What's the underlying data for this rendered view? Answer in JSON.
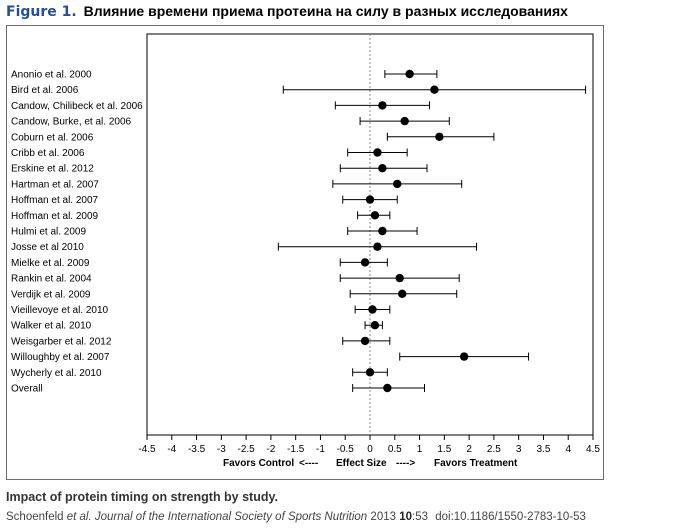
{
  "figure": {
    "label": "Figure 1.",
    "title": "Влияние времени приема протеина на силу в разных исследованиях"
  },
  "caption": {
    "title": "Impact of protein timing on strength by study.",
    "authors": "Schoenfeld",
    "etal": "et al.",
    "journal": "Journal of the International Society of Sports Nutrition",
    "year": "2013",
    "volume": "10",
    "article": ":53",
    "doi": "doi:10.1186/1550-2783-10-53"
  },
  "chart_data": {
    "type": "scatter",
    "subtype": "forest-plot",
    "title": "",
    "xlabel_left": "Favors Control",
    "xlabel_left_arrow": "<----",
    "xlabel_center": "Effect Size",
    "xlabel_right_arrow": "---->",
    "xlabel_right": "Favors Treatment",
    "xlim": [
      -4.5,
      4.5
    ],
    "xticks": [
      -4.5,
      -4,
      -3.5,
      -3,
      -2.5,
      -2,
      -1.5,
      -1,
      -0.5,
      0,
      0.5,
      1,
      1.5,
      2,
      2.5,
      3,
      3.5,
      4,
      4.5
    ],
    "xtick_labels": [
      "-4.5",
      "-4",
      "-3.5",
      "-3",
      "-2.5",
      "-2",
      "-1.5",
      "-1",
      "-0.5",
      "0",
      "0.5",
      "1",
      "1.5",
      "2",
      "2.5",
      "3",
      "3.5",
      "4",
      "4.5"
    ],
    "reference_line": 0,
    "grid": false,
    "studies": [
      {
        "name": "Anonio et al. 2000",
        "estimate": 0.8,
        "lower": 0.3,
        "upper": 1.35
      },
      {
        "name": "Bird et al. 2006",
        "estimate": 1.3,
        "lower": -1.75,
        "upper": 4.35
      },
      {
        "name": "Candow, Chilibeck et al. 2006",
        "estimate": 0.25,
        "lower": -0.7,
        "upper": 1.2
      },
      {
        "name": "Candow, Burke, et al. 2006",
        "estimate": 0.7,
        "lower": -0.2,
        "upper": 1.6
      },
      {
        "name": "Coburn et al. 2006",
        "estimate": 1.4,
        "lower": 0.35,
        "upper": 2.5
      },
      {
        "name": "Cribb et al. 2006",
        "estimate": 0.15,
        "lower": -0.45,
        "upper": 0.75
      },
      {
        "name": "Erskine et al. 2012",
        "estimate": 0.25,
        "lower": -0.6,
        "upper": 1.15
      },
      {
        "name": "Hartman et al. 2007",
        "estimate": 0.55,
        "lower": -0.75,
        "upper": 1.85
      },
      {
        "name": "Hoffman et al. 2007",
        "estimate": 0.0,
        "lower": -0.55,
        "upper": 0.55
      },
      {
        "name": "Hoffman et al. 2009",
        "estimate": 0.1,
        "lower": -0.25,
        "upper": 0.4
      },
      {
        "name": "Hulmi et al. 2009",
        "estimate": 0.25,
        "lower": -0.45,
        "upper": 0.95
      },
      {
        "name": "Josse et al 2010",
        "estimate": 0.15,
        "lower": -1.85,
        "upper": 2.15
      },
      {
        "name": "Mielke et al. 2009",
        "estimate": -0.1,
        "lower": -0.6,
        "upper": 0.35
      },
      {
        "name": "Rankin et al. 2004",
        "estimate": 0.6,
        "lower": -0.6,
        "upper": 1.8
      },
      {
        "name": "Verdijk et al. 2009",
        "estimate": 0.65,
        "lower": -0.4,
        "upper": 1.75
      },
      {
        "name": "Vieillevoye et al. 2010",
        "estimate": 0.05,
        "lower": -0.3,
        "upper": 0.4
      },
      {
        "name": "Walker et al. 2010",
        "estimate": 0.1,
        "lower": -0.1,
        "upper": 0.25
      },
      {
        "name": "Weisgarber et al. 2012",
        "estimate": -0.1,
        "lower": -0.55,
        "upper": 0.4
      },
      {
        "name": "Willoughby et al. 2007",
        "estimate": 1.9,
        "lower": 0.6,
        "upper": 3.2
      },
      {
        "name": "Wycherly et al. 2010",
        "estimate": 0.0,
        "lower": -0.35,
        "upper": 0.35
      },
      {
        "name": "Overall",
        "estimate": 0.35,
        "lower": -0.35,
        "upper": 1.1
      }
    ]
  }
}
